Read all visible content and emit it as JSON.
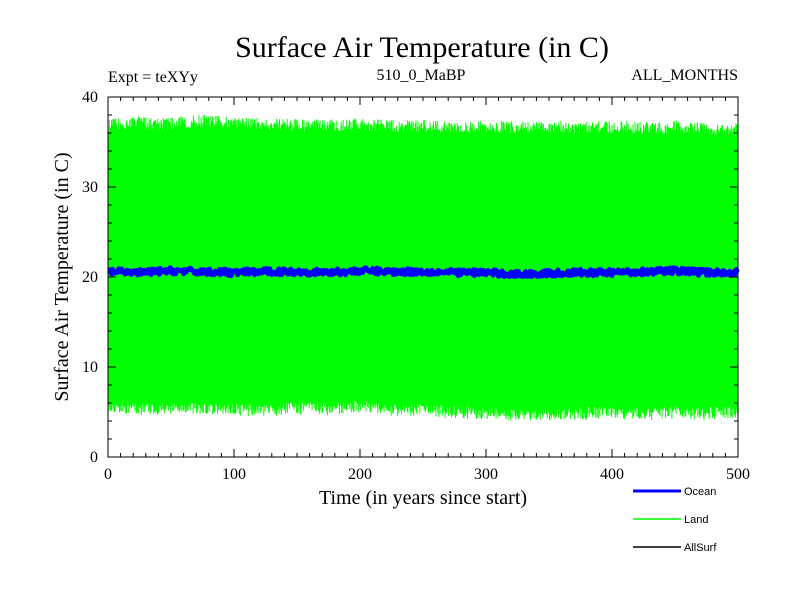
{
  "chart_data": {
    "type": "line",
    "title": "Surface Air Temperature (in C)",
    "annotations": {
      "left": "Expt = teXYy",
      "center": "510_0_MaBP",
      "right": "ALL_MONTHS"
    },
    "xlabel": "Time (in years since start)",
    "ylabel": "Surface Air Temperature (in C)",
    "xlim": [
      0,
      500
    ],
    "ylim": [
      0,
      40
    ],
    "x_ticks": [
      0,
      100,
      200,
      300,
      400,
      500
    ],
    "y_ticks": [
      0,
      10,
      20,
      30,
      40
    ],
    "grid": false,
    "legend_position": "bottom-right",
    "series": [
      {
        "name": "Ocean",
        "color": "#0000ff",
        "x": [
          0,
          25,
          50,
          75,
          100,
          125,
          150,
          175,
          200,
          225,
          250,
          275,
          300,
          325,
          350,
          375,
          400,
          425,
          450,
          475,
          500
        ],
        "y": [
          20.6,
          20.5,
          20.7,
          20.6,
          20.5,
          20.6,
          20.6,
          20.5,
          20.7,
          20.6,
          20.6,
          20.5,
          20.5,
          20.3,
          20.4,
          20.5,
          20.5,
          20.6,
          20.7,
          20.5,
          20.5
        ]
      },
      {
        "name": "Land",
        "color": "#00ff00",
        "x": [
          0,
          25,
          50,
          75,
          100,
          125,
          150,
          175,
          200,
          225,
          250,
          275,
          300,
          325,
          350,
          375,
          400,
          425,
          450,
          475,
          500
        ],
        "y_max": [
          37.0,
          37.3,
          37.2,
          37.5,
          37.2,
          37.1,
          37.0,
          37.0,
          37.1,
          36.9,
          36.9,
          36.8,
          36.8,
          36.8,
          36.8,
          36.7,
          36.8,
          36.7,
          36.8,
          36.6,
          36.5
        ],
        "y_min": [
          5.5,
          5.2,
          5.3,
          5.1,
          5.2,
          5.0,
          5.3,
          5.2,
          5.5,
          5.0,
          5.1,
          4.8,
          4.7,
          4.5,
          4.6,
          4.7,
          4.8,
          4.6,
          4.8,
          4.7,
          4.9
        ]
      },
      {
        "name": "AllSurf",
        "color": "#000000",
        "x": [],
        "y": []
      }
    ]
  }
}
